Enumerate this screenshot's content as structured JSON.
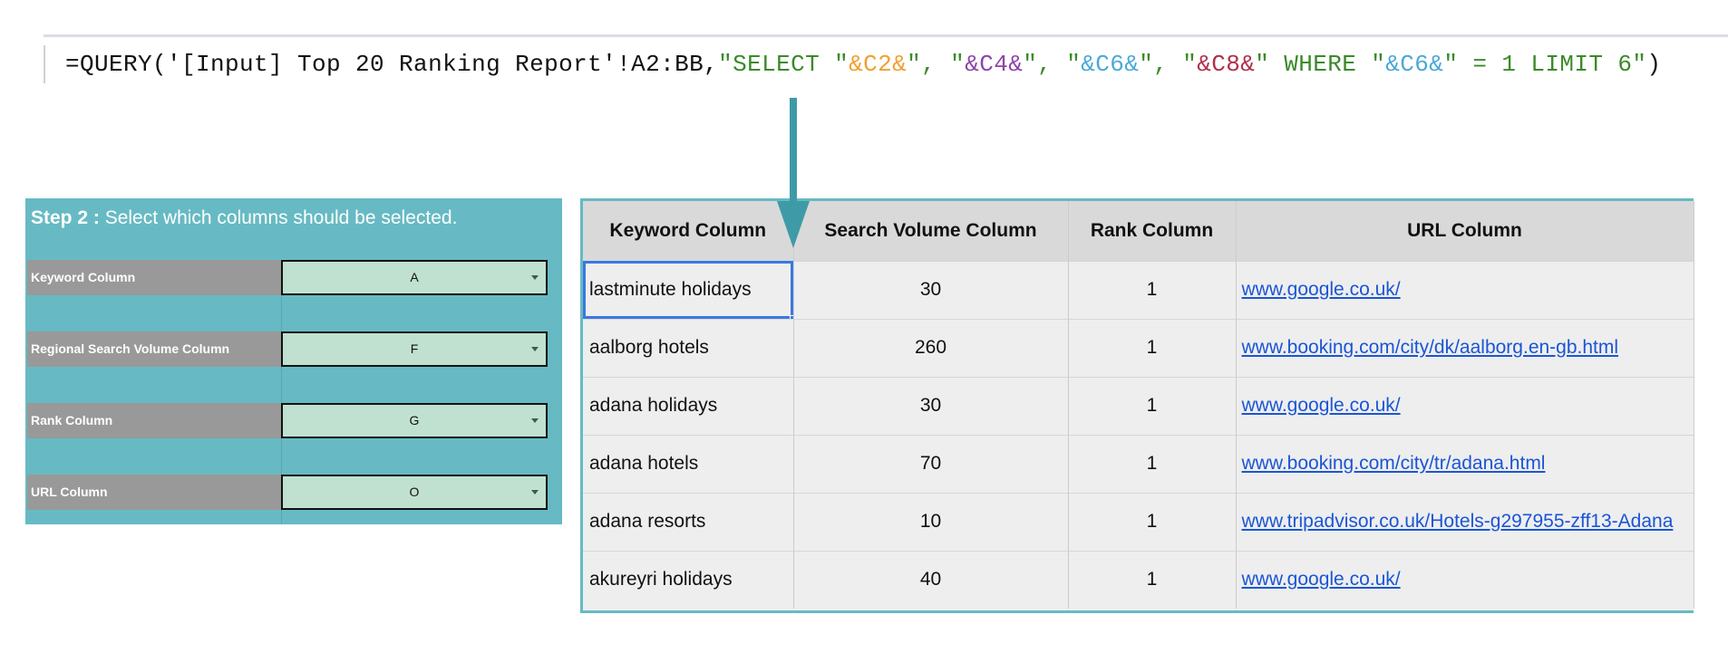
{
  "formula": {
    "prefix": "=QUERY('[Input] Top 20 Ranking Report'!A2:BB,",
    "s1": "\"SELECT \"",
    "r1": "&C2&",
    "s2": "\", \"",
    "r2": "&C4&",
    "s3": "\", \"",
    "r3": "&C6&",
    "s4": "\", \"",
    "r4": "&C8&",
    "s5": "\" WHERE \"",
    "r5": "&C6&",
    "s6": "\" = 1 LIMIT 6\"",
    "suffix": ")"
  },
  "colors": {
    "teal": "#67bac3",
    "arrow": "#3f9aa8",
    "green": "#3b8a2a",
    "orange": "#f0a030",
    "purple": "#8e44ad",
    "blue": "#4aa8d8",
    "crimson": "#b0304a",
    "link": "#1a55d6",
    "selection": "#3a78e0"
  },
  "panel": {
    "step": "Step 2",
    "colon": " : ",
    "title": "Select which columns should be selected.",
    "rows": [
      {
        "label": "Keyword Column",
        "value": "A"
      },
      {
        "label": "Regional Search Volume Column",
        "value": "F"
      },
      {
        "label": "Rank Column",
        "value": "G"
      },
      {
        "label": "URL Column",
        "value": "O"
      }
    ]
  },
  "table": {
    "headers": [
      "Keyword Column",
      "Search Volume Column",
      "Rank Column",
      "URL Column"
    ],
    "rows": [
      [
        "lastminute holidays",
        "30",
        "1",
        "www.google.co.uk/"
      ],
      [
        "aalborg hotels",
        "260",
        "1",
        "www.booking.com/city/dk/aalborg.en-gb.html"
      ],
      [
        "adana holidays",
        "30",
        "1",
        "www.google.co.uk/"
      ],
      [
        "adana hotels",
        "70",
        "1",
        "www.booking.com/city/tr/adana.html"
      ],
      [
        "adana resorts",
        "10",
        "1",
        "www.tripadvisor.co.uk/Hotels-g297955-zff13-Adana"
      ],
      [
        "akureyri holidays",
        "40",
        "1",
        "www.google.co.uk/"
      ]
    ]
  }
}
